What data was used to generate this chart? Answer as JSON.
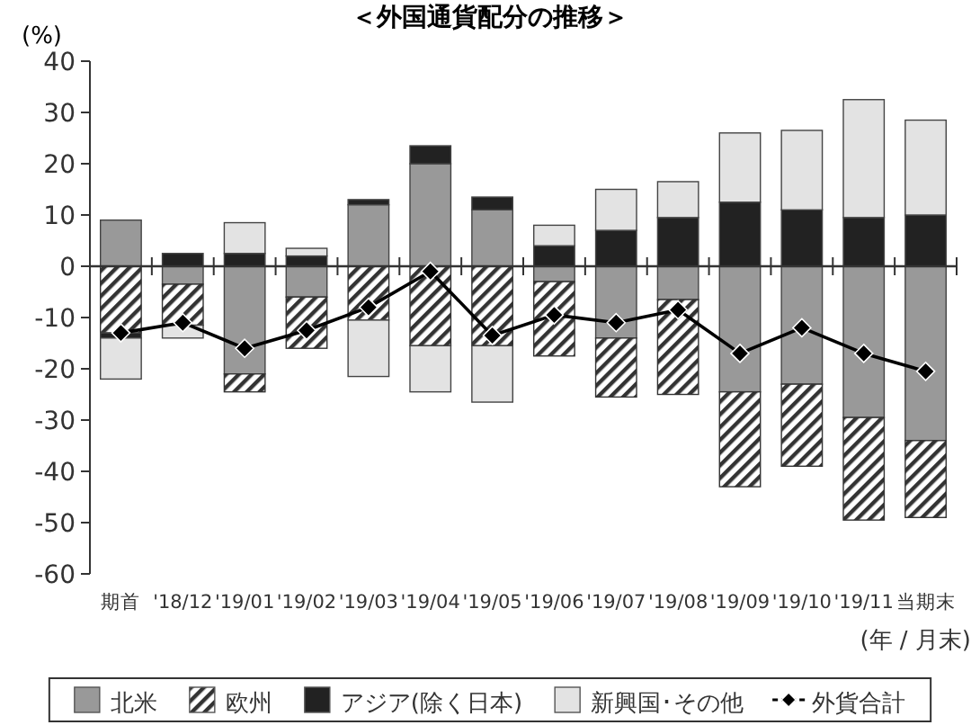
{
  "chart_data": {
    "type": "bar",
    "stacked": true,
    "title": "＜外国通貨配分の推移＞",
    "ylabel": "(%)",
    "xlabel": "(年 / 月末)",
    "categories": [
      "期首",
      "'18/12",
      "'19/01",
      "'19/02",
      "'19/03",
      "'19/04",
      "'19/05",
      "'19/06",
      "'19/07",
      "'19/08",
      "'19/09",
      "'19/10",
      "'19/11",
      "当期末"
    ],
    "ylim": [
      -60,
      40
    ],
    "yticks": [
      -60,
      -50,
      -40,
      -30,
      -20,
      -10,
      0,
      10,
      20,
      30,
      40
    ],
    "legend": "bottom",
    "marker": "diamond",
    "series": [
      {
        "name": "北米",
        "color": "#999999",
        "values": [
          9,
          -3.5,
          -21,
          -6,
          12,
          20,
          11,
          -3,
          -14,
          -6.5,
          -24.5,
          -23,
          -29.5,
          -34
        ]
      },
      {
        "name": "欧州",
        "color": "#333333",
        "values": [
          -13,
          -8,
          -3.5,
          -10,
          -10.5,
          -15.5,
          -15.5,
          -14.5,
          -11.5,
          -18.5,
          -18.5,
          -16,
          -20,
          -15
        ]
      },
      {
        "name": "アジア(除く日本)",
        "color": "#222222",
        "values": [
          -1,
          2.5,
          2.5,
          2,
          1,
          3.5,
          2.5,
          4,
          7,
          9.5,
          12.5,
          11,
          9.5,
          10
        ]
      },
      {
        "name": "新興国･その他",
        "color": "#e3e3e3",
        "values": [
          -8,
          -2.5,
          6,
          1.5,
          -11,
          -9,
          -11,
          4,
          8,
          7,
          13.5,
          15.5,
          23,
          18.5
        ]
      },
      {
        "name": "外貨合計",
        "type": "line",
        "color": "#000000",
        "values": [
          -13,
          -11,
          -16,
          -12.5,
          -8,
          -1,
          -13.5,
          -9.5,
          -11,
          -8.5,
          -17,
          -12,
          -17,
          -20.5
        ]
      }
    ]
  }
}
